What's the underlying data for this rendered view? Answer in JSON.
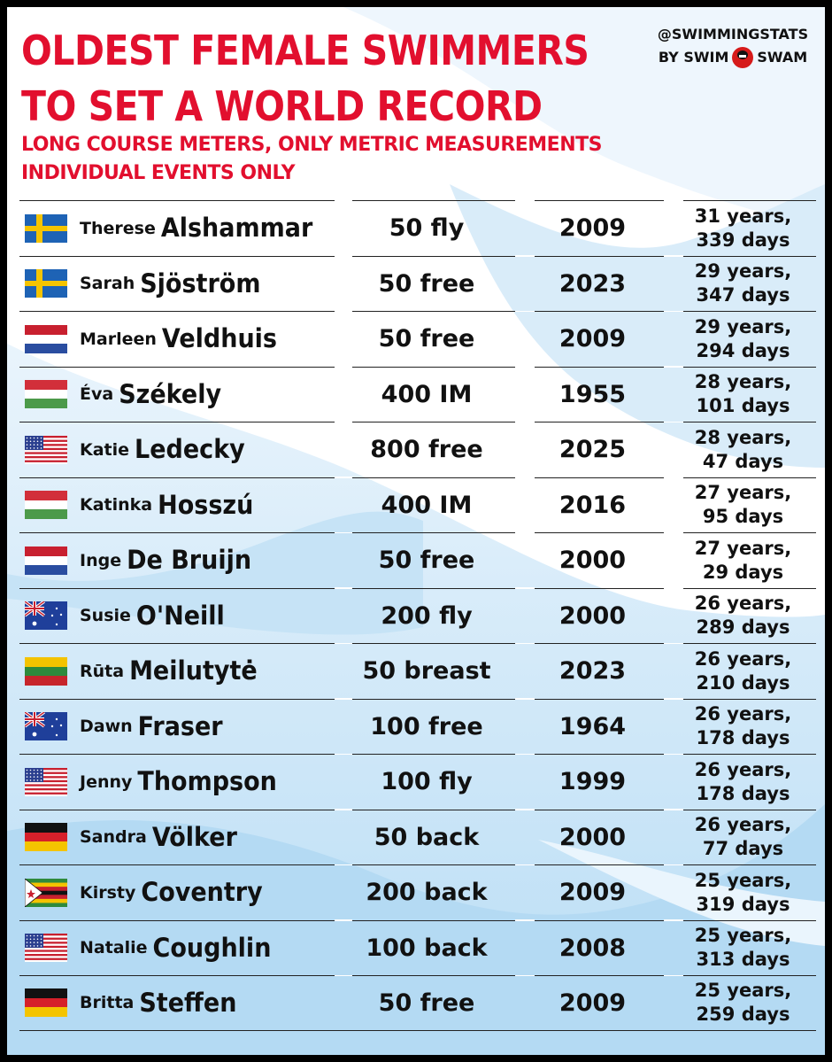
{
  "header": {
    "title_line1": "OLDEST FEMALE SWIMMERS",
    "title_line2": "TO SET A WORLD RECORD",
    "subtitle_line1": "LONG COURSE METERS, ONLY METRIC MEASUREMENTS",
    "subtitle_line2": "INDIVIDUAL EVENTS ONLY"
  },
  "brand": {
    "handle": "@SWIMMINGSTATS",
    "by": "BY SWIM",
    "swam": "SWAM"
  },
  "rows": [
    {
      "flag": "sweden-flag",
      "first": "Therese",
      "last": "Alshammar",
      "event": "50 fly",
      "year": "2009",
      "age1": "31 years,",
      "age2": "339 days"
    },
    {
      "flag": "sweden-flag",
      "first": "Sarah",
      "last": "Sjöström",
      "event": "50 free",
      "year": "2023",
      "age1": "29 years,",
      "age2": "347 days"
    },
    {
      "flag": "netherlands-flag",
      "first": "Marleen",
      "last": "Veldhuis",
      "event": "50 free",
      "year": "2009",
      "age1": "29 years,",
      "age2": "294 days"
    },
    {
      "flag": "hungary-flag",
      "first": "Éva",
      "last": "Székely",
      "event": "400 IM",
      "year": "1955",
      "age1": "28 years,",
      "age2": "101 days"
    },
    {
      "flag": "usa-flag",
      "first": "Katie",
      "last": "Ledecky",
      "event": "800 free",
      "year": "2025",
      "age1": "28 years,",
      "age2": "47 days"
    },
    {
      "flag": "hungary-flag",
      "first": "Katinka",
      "last": "Hosszú",
      "event": "400 IM",
      "year": "2016",
      "age1": "27 years,",
      "age2": "95 days"
    },
    {
      "flag": "netherlands-flag",
      "first": "Inge",
      "last": "De Bruijn",
      "event": "50 free",
      "year": "2000",
      "age1": "27 years,",
      "age2": "29 days"
    },
    {
      "flag": "australia-flag",
      "first": "Susie",
      "last": "O'Neill",
      "event": "200 fly",
      "year": "2000",
      "age1": "26 years,",
      "age2": "289 days"
    },
    {
      "flag": "lithuania-flag",
      "first": "Rūta",
      "last": "Meilutytė",
      "event": "50 breast",
      "year": "2023",
      "age1": "26 years,",
      "age2": "210 days"
    },
    {
      "flag": "australia-flag",
      "first": "Dawn",
      "last": "Fraser",
      "event": "100 free",
      "year": "1964",
      "age1": "26 years,",
      "age2": "178 days"
    },
    {
      "flag": "usa-flag",
      "first": "Jenny",
      "last": "Thompson",
      "event": "100 fly",
      "year": "1999",
      "age1": "26 years,",
      "age2": "178 days"
    },
    {
      "flag": "germany-flag",
      "first": "Sandra",
      "last": "Völker",
      "event": "50 back",
      "year": "2000",
      "age1": "26 years,",
      "age2": "77 days"
    },
    {
      "flag": "zimbabwe-flag",
      "first": "Kirsty",
      "last": "Coventry",
      "event": "200 back",
      "year": "2009",
      "age1": "25 years,",
      "age2": "319 days"
    },
    {
      "flag": "usa-flag",
      "first": "Natalie",
      "last": "Coughlin",
      "event": "100 back",
      "year": "2008",
      "age1": "25 years,",
      "age2": "313 days"
    },
    {
      "flag": "germany-flag",
      "first": "Britta",
      "last": "Steffen",
      "event": "50 free",
      "year": "2009",
      "age1": "25 years,",
      "age2": "259 days"
    }
  ],
  "colors": {
    "title_red": "#e20f2e",
    "wave_light": "#cfe6f6",
    "wave_mid": "#a9d3f0"
  }
}
